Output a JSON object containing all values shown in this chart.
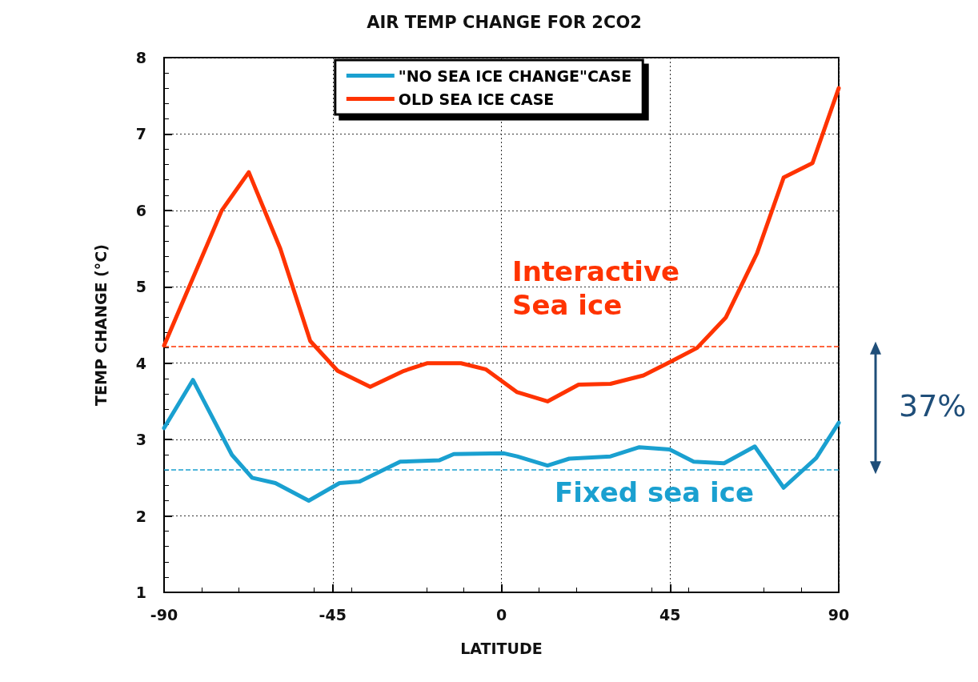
{
  "chart_data": {
    "type": "line",
    "title": "AIR TEMP CHANGE FOR 2CO2",
    "xlabel": "LATITUDE",
    "ylabel": "TEMP CHANGE (°C)",
    "xlim": [
      -90,
      90
    ],
    "xticks": [
      -90,
      -45,
      0,
      45,
      90
    ],
    "ylim": [
      1,
      8
    ],
    "yticks": [
      1,
      2,
      3,
      4,
      5,
      6,
      7,
      8
    ],
    "grid": true,
    "legend": "top",
    "marker": "none",
    "line_style": "solid",
    "series": [
      {
        "name": "\"NO SEA ICE CHANGE\"CASE",
        "color": "#1aa0d0",
        "x": [
          -90,
          -82.3,
          -71.9,
          -66.5,
          -60.3,
          -51.4,
          -43.2,
          -37.9,
          -27,
          -16.5,
          -12.7,
          0.7,
          4.2,
          12.3,
          18.1,
          29.1,
          36.8,
          44.9,
          51.3,
          59.4,
          67.6,
          75.3,
          84,
          90
        ],
        "values": [
          3.15,
          3.78,
          2.8,
          2.5,
          2.43,
          2.2,
          2.43,
          2.45,
          2.71,
          2.73,
          2.81,
          2.82,
          2.78,
          2.66,
          2.75,
          2.78,
          2.9,
          2.87,
          2.71,
          2.69,
          2.91,
          2.37,
          2.76,
          3.22
        ]
      },
      {
        "name": "OLD SEA ICE CASE",
        "color": "#ff3300",
        "x": [
          -90,
          -74.6,
          -67.4,
          -59,
          -51,
          -43.7,
          -35,
          -26,
          -19.7,
          -10.8,
          -4.2,
          4.2,
          12.3,
          20.6,
          29.1,
          37.9,
          45.6,
          52.2,
          59.9,
          68.2,
          75.3,
          83,
          90
        ],
        "values": [
          4.23,
          6,
          6.5,
          5.5,
          4.29,
          3.9,
          3.69,
          3.9,
          4,
          4,
          3.92,
          3.62,
          3.5,
          3.72,
          3.73,
          3.84,
          4.03,
          4.2,
          4.6,
          5.44,
          6.43,
          6.62,
          7.6
        ]
      }
    ],
    "ref_lines": [
      {
        "axis": "y",
        "value": 4.22,
        "color": "#ff3300",
        "line_style": "dashed"
      },
      {
        "axis": "y",
        "value": 2.61,
        "color": "#1aa0d0",
        "line_style": "dashed"
      }
    ],
    "annotations": [
      "Interactive\nSea ice",
      "Fixed sea ice",
      "37%"
    ]
  }
}
